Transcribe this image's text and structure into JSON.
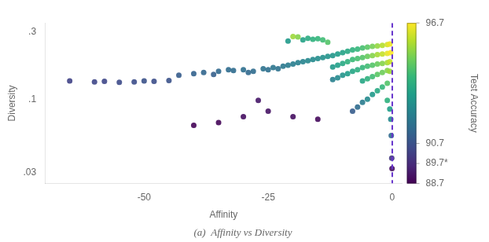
{
  "chart_data": {
    "type": "scatter",
    "title": "(a)  Affinity vs Diversity",
    "xlabel": "Affinity",
    "ylabel": "Diversity",
    "x": [
      -65,
      -60,
      -58,
      -55,
      -52,
      -50,
      -48,
      -45,
      -43,
      -40,
      -38,
      -36,
      -35,
      -33,
      -32,
      -30,
      -29,
      -28,
      -27,
      -26,
      -25,
      -24,
      -23,
      -22,
      -21,
      -20,
      -19,
      -18,
      -17,
      -16,
      -15,
      -14,
      -13,
      -12,
      -11,
      -10,
      -9,
      -8,
      -7,
      -6,
      -5,
      -4,
      -3,
      -2,
      -1,
      -0.5,
      -13,
      -14,
      -15,
      -16,
      -17,
      -18,
      -19,
      -20,
      -21,
      -10,
      -11,
      -12,
      -9,
      -8,
      -7,
      -6,
      -5,
      -4,
      -3,
      -2,
      -1,
      -0.3,
      -6,
      -7,
      -8,
      -9,
      -10,
      -11,
      -12,
      -5,
      -4,
      -3,
      -2,
      -1,
      -0.5,
      -2,
      -3,
      -4,
      -5,
      -6,
      -1,
      -0.5,
      -1,
      -2,
      -3,
      -4,
      -5,
      -6,
      -7,
      -8,
      -1,
      -0.5,
      -0.3,
      -0.2,
      -0.1,
      -0.05,
      -20,
      -15,
      -25,
      -30,
      -35,
      -40
    ],
    "values": [
      0.135,
      0.133,
      0.134,
      0.132,
      0.133,
      0.135,
      0.134,
      0.136,
      0.148,
      0.152,
      0.155,
      0.15,
      0.158,
      0.162,
      0.16,
      0.162,
      0.155,
      0.158,
      0.098,
      0.165,
      0.162,
      0.168,
      0.165,
      0.172,
      0.175,
      0.178,
      0.182,
      0.185,
      0.188,
      0.192,
      0.195,
      0.198,
      0.202,
      0.205,
      0.21,
      0.215,
      0.22,
      0.225,
      0.228,
      0.232,
      0.235,
      0.238,
      0.24,
      0.242,
      0.245,
      0.248,
      0.255,
      0.265,
      0.27,
      0.268,
      0.272,
      0.265,
      0.278,
      0.28,
      0.26,
      0.18,
      0.175,
      0.17,
      0.185,
      0.192,
      0.195,
      0.198,
      0.202,
      0.205,
      0.208,
      0.21,
      0.212,
      0.215,
      0.168,
      0.162,
      0.158,
      0.152,
      0.148,
      0.142,
      0.138,
      0.172,
      0.175,
      0.178,
      0.18,
      0.182,
      0.185,
      0.155,
      0.15,
      0.145,
      0.14,
      0.135,
      0.16,
      0.158,
      0.13,
      0.122,
      0.115,
      0.108,
      0.1,
      0.095,
      0.088,
      0.082,
      0.098,
      0.085,
      0.072,
      0.055,
      0.038,
      0.032,
      0.075,
      0.072,
      0.082,
      0.075,
      0.068,
      0.065
    ],
    "color_values": [
      90.3,
      90.4,
      90.4,
      90.5,
      90.6,
      90.7,
      90.6,
      90.7,
      91.0,
      91.2,
      91.3,
      91.1,
      91.4,
      91.5,
      91.5,
      91.6,
      91.4,
      91.5,
      89.2,
      91.7,
      91.6,
      91.8,
      91.7,
      91.9,
      92.0,
      92.1,
      92.2,
      92.3,
      92.4,
      92.5,
      92.6,
      92.7,
      92.8,
      92.9,
      93.1,
      93.3,
      93.5,
      93.8,
      94.0,
      94.3,
      94.6,
      95.0,
      95.4,
      95.8,
      96.2,
      96.5,
      94.5,
      94.2,
      94.0,
      93.8,
      93.6,
      93.3,
      95.2,
      95.5,
      93.0,
      93.5,
      93.2,
      93.0,
      93.8,
      94.1,
      94.3,
      94.5,
      94.8,
      95.2,
      95.6,
      96.0,
      96.4,
      96.7,
      94.0,
      93.7,
      93.4,
      93.1,
      92.8,
      92.5,
      92.2,
      94.2,
      94.5,
      94.8,
      95.2,
      95.6,
      96.0,
      94.9,
      94.6,
      94.2,
      93.8,
      93.4,
      95.2,
      95.5,
      94.5,
      94.0,
      93.5,
      93.0,
      92.5,
      92.0,
      91.5,
      91.0,
      93.8,
      93.2,
      92.5,
      91.5,
      90.0,
      89.0,
      89.0,
      88.9,
      89.1,
      89.0,
      88.8,
      88.75
    ],
    "colorbar": {
      "label": "Test Accuracy",
      "range": [
        88.7,
        96.7
      ],
      "ticks": [
        88.7,
        {
          "value": 89.7,
          "label": "89.7*"
        },
        90.7,
        96.7
      ]
    },
    "vlines": [
      {
        "x": 0,
        "color": "#6633CC",
        "line_style": "dashed"
      }
    ],
    "xlim": [
      -70,
      2
    ],
    "xticks": [
      -50,
      -25,
      0
    ],
    "ylim": [
      0.025,
      0.35
    ],
    "yticks": [
      {
        "value": 0.03,
        "label": ".03"
      },
      {
        "value": 0.1,
        "label": ".1"
      },
      {
        "value": 0.3,
        "label": ".3"
      }
    ],
    "log": "y",
    "grid": false
  }
}
